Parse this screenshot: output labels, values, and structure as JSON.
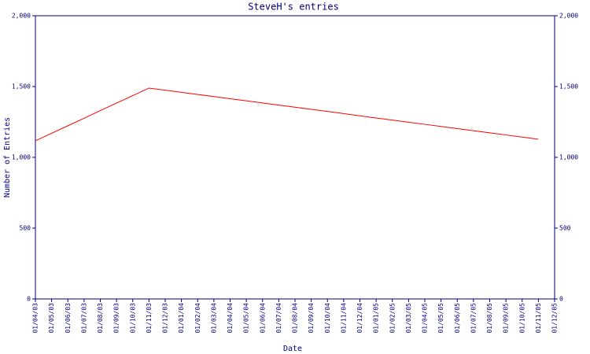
{
  "chart_data": {
    "type": "line",
    "title": "SteveH's entries",
    "x_label": "Date",
    "y_label": "Number of Entries",
    "categories": [
      "01/04/03",
      "01/05/03",
      "01/06/03",
      "01/07/03",
      "01/08/03",
      "01/09/03",
      "01/10/03",
      "01/11/03",
      "01/12/03",
      "01/01/04",
      "01/02/04",
      "01/03/04",
      "01/04/04",
      "01/05/04",
      "01/06/04",
      "01/07/04",
      "01/08/04",
      "01/09/04",
      "01/10/04",
      "01/11/04",
      "01/12/04",
      "01/01/05",
      "01/02/05",
      "01/03/05",
      "01/04/05",
      "01/05/05",
      "01/06/05",
      "01/07/05",
      "01/08/05",
      "01/09/05",
      "01/10/05",
      "01/11/05",
      "01/12/05"
    ],
    "series": [
      {
        "color": "#ff0000",
        "values": [
          1117,
          1170,
          1223,
          1276,
          1330,
          1383,
          1436,
          1489,
          1474,
          1459,
          1444,
          1429,
          1414,
          1399,
          1384,
          1369,
          1354,
          1339,
          1324,
          1309,
          1293,
          1278,
          1263,
          1248,
          1233,
          1218,
          1203,
          1188,
          1173,
          1158,
          1143,
          1128,
          null
        ]
      }
    ],
    "ylim": [
      0,
      2000
    ],
    "yticks": [
      0,
      500,
      {
        "value": 1000,
        "label": "1,000"
      },
      {
        "value": 1500,
        "label": "1,500"
      },
      {
        "value": 2000,
        "label": "2,000"
      }
    ],
    "axis_color": "#000080"
  }
}
